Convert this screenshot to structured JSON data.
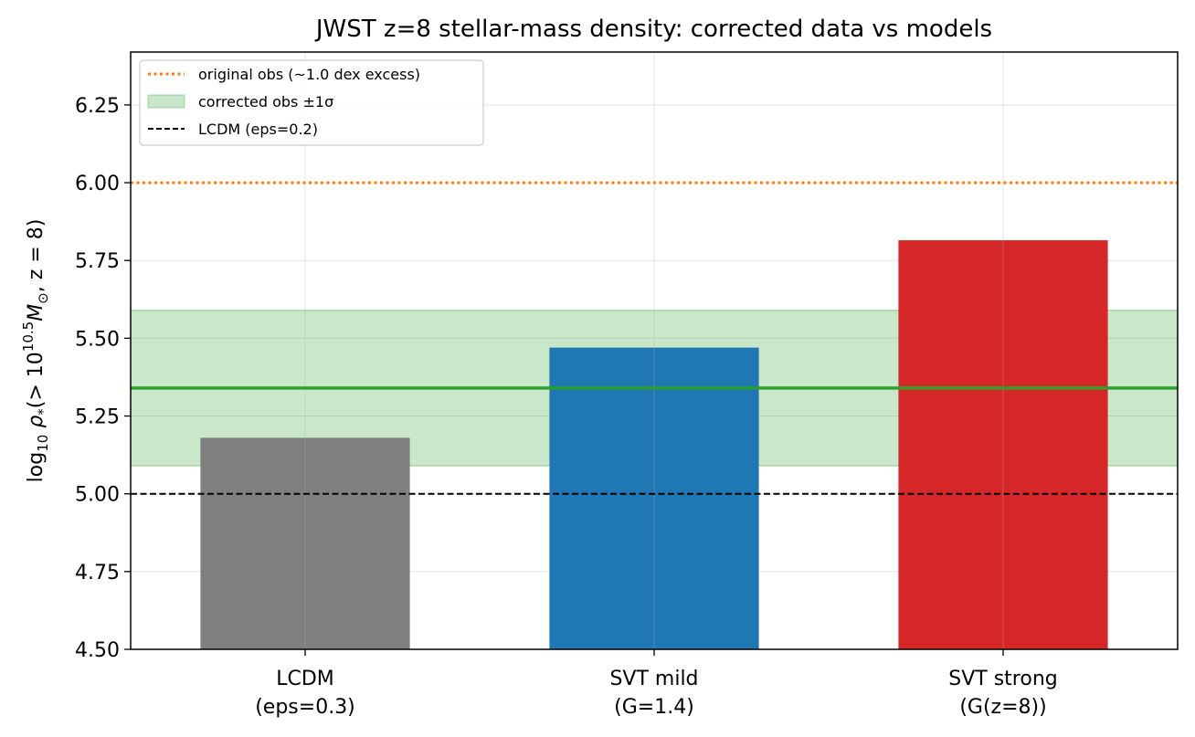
{
  "chart_data": {
    "type": "bar",
    "title": "JWST z=8 stellar-mass density: corrected data vs models",
    "ylabel_parts": {
      "log": "log",
      "log_sub": "10",
      "rho": "ρ",
      "rho_sub": "*",
      "open": "(> 10",
      "exp": "10.5",
      "mass": "M",
      "mass_sub": "⊙",
      "tail": ", z = 8)"
    },
    "ylim": [
      4.5,
      6.42
    ],
    "yticks": [
      "4.50",
      "4.75",
      "5.00",
      "5.25",
      "5.50",
      "5.75",
      "6.00",
      "6.25"
    ],
    "grid": true,
    "legend_position": "upper-left",
    "categories": [
      {
        "line1": "LCDM",
        "line2": "(eps=0.3)"
      },
      {
        "line1": "SVT mild",
        "line2": "(G=1.4)"
      },
      {
        "line1": "SVT strong",
        "line2": "(G(z=8))"
      }
    ],
    "values": [
      5.18,
      5.47,
      5.815
    ],
    "bar_colors": [
      "#7f7f7f",
      "#1f77b4",
      "#d62728"
    ],
    "reference_lines": {
      "original_obs": {
        "y": 6.0,
        "color": "#ff7f0e",
        "style": "dotted",
        "label": "original obs (~1.0 dex excess)"
      },
      "corrected_obs": {
        "y": 5.34,
        "band": [
          5.09,
          5.59
        ],
        "color": "#2ca02c",
        "label": "corrected obs ±1σ"
      },
      "lcdm_baseline": {
        "y": 5.0,
        "color": "#000000",
        "style": "dashed",
        "label": "LCDM (eps=0.2)"
      }
    }
  }
}
